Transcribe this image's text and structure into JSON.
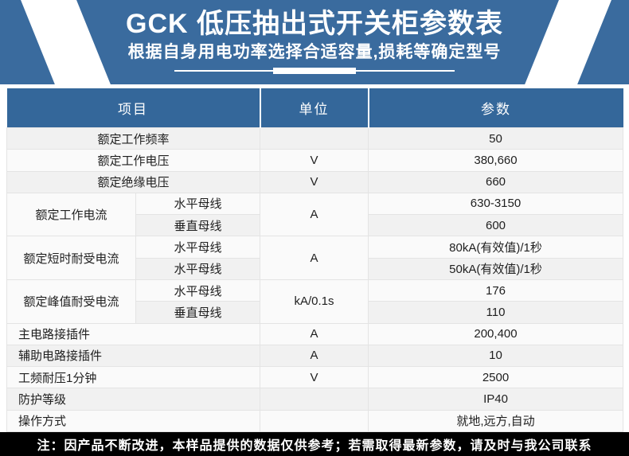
{
  "banner": {
    "title": "GCK 低压抽出式开关柜参数表",
    "subtitle": "根据自身用电功率选择合适容量,损耗等确定型号"
  },
  "table": {
    "columns": [
      "项目",
      "单位",
      "参数"
    ],
    "rows": [
      {
        "item": "额定工作频率",
        "item_align": "center",
        "unit": "",
        "value": "50"
      },
      {
        "item": "额定工作电压",
        "item_align": "center",
        "unit": "V",
        "value": "380,660"
      },
      {
        "item": "额定绝缘电压",
        "item_align": "center",
        "unit": "V",
        "value": "660"
      },
      {
        "item": "额定工作电流",
        "unit": "A",
        "subrows": [
          {
            "sub": "水平母线",
            "value": "630-3150"
          },
          {
            "sub": "垂直母线",
            "value": "600"
          }
        ]
      },
      {
        "item": "额定短时耐受电流",
        "unit": "A",
        "subrows": [
          {
            "sub": "水平母线",
            "value": "80kA(有效值)/1秒"
          },
          {
            "sub": "水平母线",
            "value": "50kA(有效值)/1秒"
          }
        ]
      },
      {
        "item": "额定峰值耐受电流",
        "unit": "kA/0.1s",
        "subrows": [
          {
            "sub": "水平母线",
            "value": "176"
          },
          {
            "sub": "垂直母线",
            "value": "110"
          }
        ]
      },
      {
        "item": "主电路接插件",
        "item_align": "left",
        "unit": "A",
        "value": "200,400"
      },
      {
        "item": "辅助电路接插件",
        "item_align": "left",
        "unit": "A",
        "value": "10"
      },
      {
        "item": "工频耐压1分钟",
        "item_align": "left",
        "unit": "V",
        "value": "2500"
      },
      {
        "item": "防护等级",
        "item_align": "left",
        "unit": "",
        "value": "IP40"
      },
      {
        "item": "操作方式",
        "item_align": "left",
        "unit": "",
        "value": "就地,远方,自动"
      }
    ]
  },
  "footer": {
    "note": "注：因产品不断改进，本样品提供的数据仅供参考；若需取得最新参数，请及时与我公司联系"
  },
  "colors": {
    "banner_blue": "#3a6b9e",
    "table_header_blue": "#34679a",
    "row_odd": "#f1f1f1",
    "row_even": "#fafafa",
    "footer_bg": "#000000",
    "text": "#1f1f1f"
  }
}
